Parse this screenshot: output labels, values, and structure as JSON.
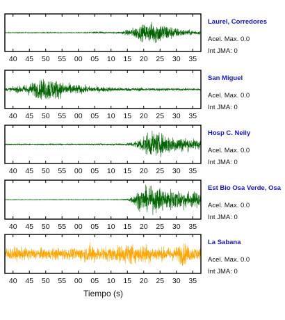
{
  "chart_data": {
    "type": "line",
    "xlabel": "Tiempo (s)",
    "x_tick_labels": [
      "40",
      "45",
      "50",
      "55",
      "00",
      "05",
      "10",
      "15",
      "20",
      "25",
      "30",
      "35"
    ],
    "x_ticks": [
      40,
      45,
      50,
      55,
      60,
      65,
      70,
      75,
      80,
      85,
      90,
      95
    ],
    "xlim": [
      37.5,
      97.5
    ],
    "acel_label": "Acel. Max.",
    "jma_label": "Int JMA:",
    "stations": [
      {
        "name": "Laurel, Corredores",
        "acel_max": "0.0",
        "int_jma": "0",
        "color": "#006400",
        "envelope": [
          [
            37.5,
            0.03
          ],
          [
            60,
            0.03
          ],
          [
            64,
            0.05
          ],
          [
            66,
            0.13
          ],
          [
            69,
            0.05
          ],
          [
            72,
            0.06
          ],
          [
            74,
            0.15
          ],
          [
            76,
            0.35
          ],
          [
            78,
            0.55
          ],
          [
            80,
            0.7
          ],
          [
            82,
            0.85
          ],
          [
            84,
            0.95
          ],
          [
            86,
            0.8
          ],
          [
            88,
            0.6
          ],
          [
            90,
            0.4
          ],
          [
            93,
            0.25
          ],
          [
            97.5,
            0.15
          ]
        ]
      },
      {
        "name": "San Miguel",
        "acel_max": "0.0",
        "int_jma": "0",
        "color": "#006400",
        "envelope": [
          [
            37.5,
            0.12
          ],
          [
            40,
            0.2
          ],
          [
            43,
            0.35
          ],
          [
            46,
            0.6
          ],
          [
            49,
            0.85
          ],
          [
            51,
            1.0
          ],
          [
            53,
            0.8
          ],
          [
            56,
            0.55
          ],
          [
            59,
            0.4
          ],
          [
            63,
            0.28
          ],
          [
            68,
            0.2
          ],
          [
            75,
            0.15
          ],
          [
            85,
            0.12
          ],
          [
            97.5,
            0.1
          ]
        ]
      },
      {
        "name": "Hosp C. Neily",
        "acel_max": "0.0",
        "int_jma": "0",
        "color": "#006400",
        "envelope": [
          [
            37.5,
            0.04
          ],
          [
            60,
            0.04
          ],
          [
            68,
            0.05
          ],
          [
            72,
            0.06
          ],
          [
            75,
            0.1
          ],
          [
            77,
            0.25
          ],
          [
            79,
            0.55
          ],
          [
            81,
            0.9
          ],
          [
            83,
            1.0
          ],
          [
            86,
            0.85
          ],
          [
            89,
            0.7
          ],
          [
            92,
            0.6
          ],
          [
            95,
            0.45
          ],
          [
            97.5,
            0.4
          ]
        ]
      },
      {
        "name": "Est Bio Osa Verde, Osa",
        "acel_max": "0.0",
        "int_jma": "0",
        "color": "#006400",
        "envelope": [
          [
            37.5,
            0.02
          ],
          [
            70,
            0.02
          ],
          [
            73,
            0.03
          ],
          [
            75,
            0.08
          ],
          [
            77,
            0.4
          ],
          [
            78,
            0.7
          ],
          [
            80,
            0.95
          ],
          [
            83,
            1.0
          ],
          [
            86,
            0.95
          ],
          [
            89,
            0.85
          ],
          [
            92,
            0.75
          ],
          [
            95,
            0.65
          ],
          [
            97.5,
            0.6
          ]
        ]
      },
      {
        "name": "La Sabana",
        "acel_max": "0.0",
        "int_jma": "0",
        "color": "#FFA500",
        "envelope": [
          [
            37.5,
            0.5
          ],
          [
            40,
            0.55
          ],
          [
            45,
            0.5
          ],
          [
            50,
            0.45
          ],
          [
            55,
            0.5
          ],
          [
            58,
            0.45
          ],
          [
            62,
            0.6
          ],
          [
            64,
            0.85
          ],
          [
            66,
            0.55
          ],
          [
            70,
            0.6
          ],
          [
            74,
            0.75
          ],
          [
            76,
            0.95
          ],
          [
            78,
            0.6
          ],
          [
            80,
            0.9
          ],
          [
            82,
            0.7
          ],
          [
            85,
            0.55
          ],
          [
            88,
            0.55
          ],
          [
            90,
            0.6
          ],
          [
            92,
            1.0
          ],
          [
            94,
            0.6
          ],
          [
            97.5,
            0.5
          ]
        ]
      }
    ]
  }
}
